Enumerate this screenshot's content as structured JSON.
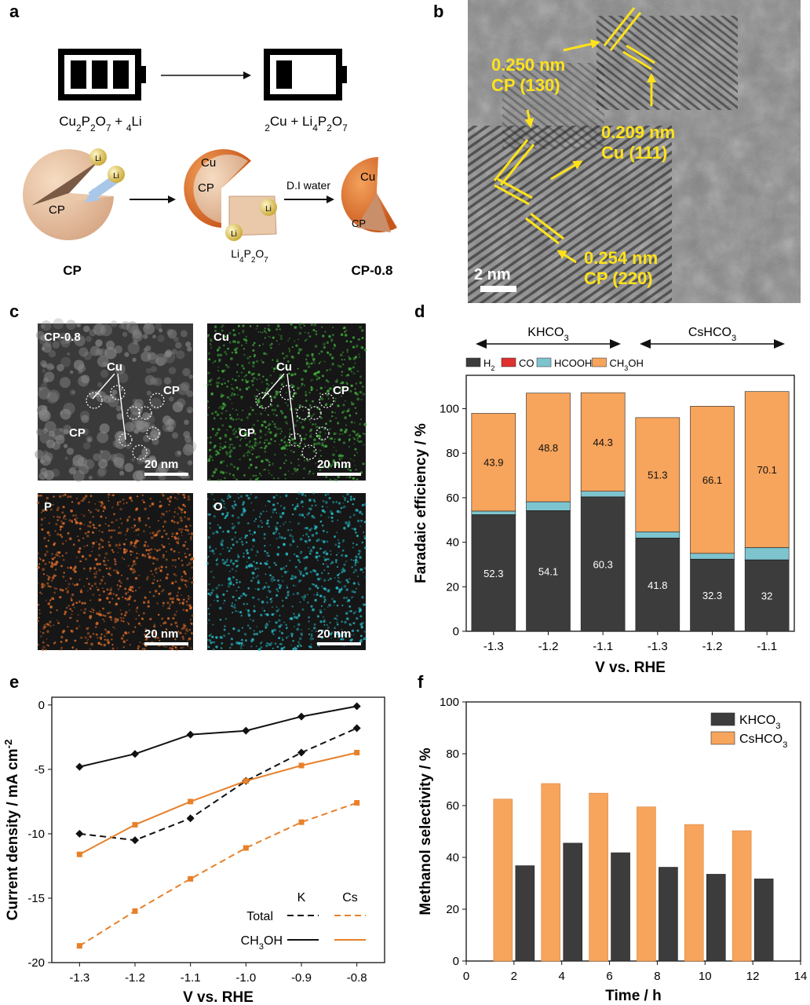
{
  "panels": {
    "a": {
      "label": "a",
      "reaction_left": "Cu2P2O7 + 4Li",
      "reaction_right": "2Cu + Li4P2O7",
      "sphere_cp_label": "CP",
      "sphere_mid_cu": "Cu",
      "sphere_mid_cp": "CP",
      "sphere_right_cu": "Cu",
      "sphere_right_cp": "CP",
      "li_label": "Li",
      "byproduct": "Li4P2O7",
      "wash_label": "D.I water",
      "name_left": "CP",
      "name_right": "CP-0.8"
    },
    "b": {
      "label": "b",
      "annotations": [
        {
          "value": "0.250 nm",
          "phase": "CP (130)"
        },
        {
          "value": "0.209 nm",
          "phase": "Cu (111)"
        },
        {
          "value": "0.254 nm",
          "phase": "CP (220)"
        }
      ],
      "scale_bar": "2 nm"
    },
    "c": {
      "label": "c",
      "maps": [
        {
          "title": "CP-0.8",
          "scale": "20 nm",
          "color": "#8a8a8a"
        },
        {
          "title": "Cu",
          "scale": "20 nm",
          "color": "#3fa83a"
        },
        {
          "title": "P",
          "scale": "20 nm",
          "color": "#d86a28"
        },
        {
          "title": "O",
          "scale": "20 nm",
          "color": "#26b8c4"
        }
      ],
      "cu_label": "Cu",
      "cp_label": "CP"
    },
    "d": {
      "label": "d"
    },
    "e": {
      "label": "e"
    },
    "f": {
      "label": "f"
    }
  },
  "chart_data": [
    {
      "id": "d",
      "type": "bar",
      "stacked": true,
      "title": "",
      "group_labels": [
        "KHCO3",
        "CsHCO3"
      ],
      "categories": [
        "-1.3",
        "-1.2",
        "-1.1",
        "-1.3",
        "-1.2",
        "-1.1"
      ],
      "series": [
        {
          "name": "H2",
          "color": "#3c3c3c",
          "values": [
            52.3,
            54.1,
            60.3,
            41.8,
            32.3,
            32.0
          ]
        },
        {
          "name": "CO",
          "color": "#e03030",
          "values": [
            0.1,
            0.1,
            0.1,
            0.1,
            0.1,
            0.1
          ]
        },
        {
          "name": "HCOOH",
          "color": "#7ec4cf",
          "values": [
            1.6,
            4.0,
            2.5,
            2.8,
            2.6,
            5.5
          ]
        },
        {
          "name": "CH3OH",
          "color": "#f7a45c",
          "values": [
            43.9,
            48.8,
            44.3,
            51.3,
            66.1,
            70.1
          ]
        }
      ],
      "xlabel": "V vs. RHE",
      "ylabel": "Faradaic efficiency / %",
      "ylim": [
        0,
        115
      ],
      "yticks": [
        0,
        20,
        40,
        60,
        80,
        100
      ]
    },
    {
      "id": "e",
      "type": "line",
      "x": [
        -1.3,
        -1.2,
        -1.1,
        -1.0,
        -0.9,
        -0.8
      ],
      "series": [
        {
          "name": "K Total",
          "color": "#111111",
          "dash": true,
          "marker": "diamond",
          "values": [
            -10.0,
            -10.5,
            -8.8,
            -5.9,
            -3.7,
            -1.8
          ]
        },
        {
          "name": "K CH3OH",
          "color": "#111111",
          "dash": false,
          "marker": "diamond",
          "values": [
            -4.8,
            -3.8,
            -2.3,
            -2.0,
            -0.9,
            -0.1
          ]
        },
        {
          "name": "Cs Total",
          "color": "#e8802a",
          "dash": true,
          "marker": "square",
          "values": [
            -18.7,
            -16.0,
            -13.5,
            -11.1,
            -9.1,
            -7.6
          ]
        },
        {
          "name": "Cs CH3OH",
          "color": "#e8802a",
          "dash": false,
          "marker": "square",
          "values": [
            -11.6,
            -9.3,
            -7.5,
            -5.9,
            -4.7,
            -3.7
          ]
        }
      ],
      "legend": {
        "col_k": "K",
        "col_cs": "Cs",
        "row_total": "Total",
        "row_ch3oh": "CH3OH",
        "position": "bottom-right"
      },
      "xlabel": "V vs. RHE",
      "ylabel": "Current density / mA cm-2",
      "xlim": [
        -1.35,
        -0.75
      ],
      "ylim": [
        -20,
        0.6
      ],
      "xticks": [
        "-1.3",
        "-1.2",
        "-1.1",
        "-1.0",
        "-0.9",
        "-0.8"
      ],
      "yticks": [
        "0",
        "-5",
        "-10",
        "-15",
        "-20"
      ]
    },
    {
      "id": "f",
      "type": "bar",
      "categories": [
        2,
        4,
        6,
        8,
        10,
        12
      ],
      "series": [
        {
          "name": "KHCO3",
          "color": "#3c3c3c",
          "values": [
            36.8,
            45.5,
            41.8,
            36.2,
            33.5,
            31.7
          ]
        },
        {
          "name": "CsHCO3",
          "color": "#f7a45c",
          "values": [
            62.5,
            68.5,
            64.8,
            59.5,
            52.7,
            50.3
          ]
        }
      ],
      "legend_position": "top-right",
      "xlabel": "Time / h",
      "ylabel": "Methanol selectivity / %",
      "xlim": [
        0,
        14
      ],
      "ylim": [
        0,
        100
      ],
      "xticks": [
        0,
        2,
        4,
        6,
        8,
        10,
        12,
        14
      ],
      "yticks": [
        0,
        20,
        40,
        60,
        80,
        100
      ]
    }
  ]
}
